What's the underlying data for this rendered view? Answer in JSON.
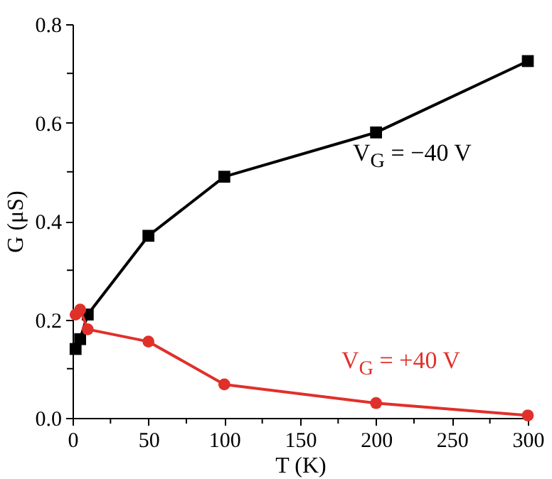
{
  "chart_data": {
    "type": "line",
    "xlabel": "T (K)",
    "ylabel": "G (μS)",
    "xlim": [
      0,
      300
    ],
    "ylim": [
      0,
      0.8
    ],
    "xticks": [
      0,
      {
        "value": 25,
        "label": null
      },
      50,
      {
        "value": 75,
        "label": null
      },
      100,
      {
        "value": 125,
        "label": null
      },
      150,
      {
        "value": 175,
        "label": null
      },
      200,
      {
        "value": 225,
        "label": null
      },
      250,
      {
        "value": 275,
        "label": null
      },
      300
    ],
    "yticks": [
      {
        "value": 0,
        "label": "0.0"
      },
      {
        "value": 0.1,
        "label": null
      },
      {
        "value": 0.2,
        "label": "0.2"
      },
      {
        "value": 0.3,
        "label": null
      },
      {
        "value": 0.4,
        "label": "0.4"
      },
      {
        "value": 0.5,
        "label": null
      },
      {
        "value": 0.6,
        "label": "0.6"
      },
      {
        "value": 0.7,
        "label": null
      },
      {
        "value": 0.8,
        "label": "0.8"
      }
    ],
    "x": [
      2,
      5,
      10,
      50,
      100,
      200,
      300
    ],
    "series": [
      {
        "name": "V$_{G}$ = −40 V",
        "color": "#000000",
        "marker": "square",
        "values": [
          0.14,
          0.16,
          0.21,
          0.37,
          0.49,
          0.58,
          0.725
        ]
      },
      {
        "name": "V$_{G}$ = +40 V",
        "color": "#e0302a",
        "marker": "circle",
        "values": [
          0.21,
          0.22,
          0.18,
          0.155,
          0.068,
          0.03,
          0.005
        ]
      }
    ],
    "grid": false
  }
}
